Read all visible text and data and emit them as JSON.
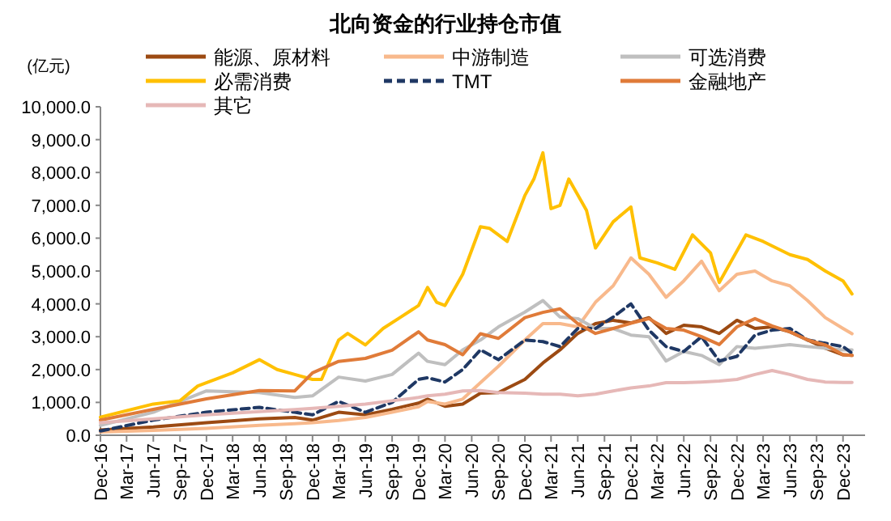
{
  "chart_data": {
    "type": "line",
    "title": "北向资金的行业持仓市值",
    "ylabel": "(亿元)",
    "legend": "top",
    "x": [
      "2016-12",
      "2017-06",
      "2017-12",
      "2018-06",
      "2018-10",
      "2018-12",
      "2019-03",
      "2019-06",
      "2019-09",
      "2019-12",
      "2020-01",
      "2020-03",
      "2020-05",
      "2020-07",
      "2020-09",
      "2020-12",
      "2021-02",
      "2021-04",
      "2021-06",
      "2021-08",
      "2021-10",
      "2021-12",
      "2022-02",
      "2022-04",
      "2022-06",
      "2022-08",
      "2022-10",
      "2022-12",
      "2023-02",
      "2023-04",
      "2023-06",
      "2023-08",
      "2023-10",
      "2023-12",
      "2024-01"
    ],
    "xlim": [
      "2016-12",
      "2024-02-15"
    ],
    "xticks": [
      {
        "value": "2016-12",
        "label": "Dec-16"
      },
      {
        "value": "2017-03",
        "label": "Mar-17"
      },
      {
        "value": "2017-06",
        "label": "Jun-17"
      },
      {
        "value": "2017-09",
        "label": "Sep-17"
      },
      {
        "value": "2017-12",
        "label": "Dec-17"
      },
      {
        "value": "2018-03",
        "label": "Mar-18"
      },
      {
        "value": "2018-06",
        "label": "Jun-18"
      },
      {
        "value": "2018-09",
        "label": "Sep-18"
      },
      {
        "value": "2018-12",
        "label": "Dec-18"
      },
      {
        "value": "2019-03",
        "label": "Mar-19"
      },
      {
        "value": "2019-06",
        "label": "Jun-19"
      },
      {
        "value": "2019-09",
        "label": "Sep-19"
      },
      {
        "value": "2019-12",
        "label": "Dec-19"
      },
      {
        "value": "2020-03",
        "label": "Mar-20"
      },
      {
        "value": "2020-06",
        "label": "Jun-20"
      },
      {
        "value": "2020-09",
        "label": "Sep-20"
      },
      {
        "value": "2020-12",
        "label": "Dec-20"
      },
      {
        "value": "2021-03",
        "label": "Mar-21"
      },
      {
        "value": "2021-06",
        "label": "Jun-21"
      },
      {
        "value": "2021-09",
        "label": "Sep-21"
      },
      {
        "value": "2021-12",
        "label": "Dec-21"
      },
      {
        "value": "2022-03",
        "label": "Mar-22"
      },
      {
        "value": "2022-06",
        "label": "Jun-22"
      },
      {
        "value": "2022-09",
        "label": "Sep-22"
      },
      {
        "value": "2022-12",
        "label": "Dec-22"
      },
      {
        "value": "2023-03",
        "label": "Mar-23"
      },
      {
        "value": "2023-06",
        "label": "Jun-23"
      },
      {
        "value": "2023-09",
        "label": "Sep-23"
      },
      {
        "value": "2023-12",
        "label": "Dec-23"
      }
    ],
    "ylim": [
      0,
      10000
    ],
    "yticks": [
      {
        "value": 0,
        "label": "0.0"
      },
      {
        "value": 1000,
        "label": "1,000.0"
      },
      {
        "value": 2000,
        "label": "2,000.0"
      },
      {
        "value": 3000,
        "label": "3,000.0"
      },
      {
        "value": 4000,
        "label": "4,000.0"
      },
      {
        "value": 5000,
        "label": "5,000.0"
      },
      {
        "value": 6000,
        "label": "6,000.0"
      },
      {
        "value": 7000,
        "label": "7,000.0"
      },
      {
        "value": 8000,
        "label": "8,000.0"
      },
      {
        "value": 9000,
        "label": "9,000.0"
      },
      {
        "value": 10000,
        "label": "10,000.0"
      }
    ],
    "grid": false,
    "line_style": "solid",
    "marker": "none",
    "series": [
      {
        "name": "能源、原材料",
        "color": "#9c4a12",
        "values": [
          160,
          250,
          380,
          500,
          540,
          460,
          700,
          620,
          790,
          980,
          1100,
          880,
          950,
          1280,
          1300,
          1700,
          2200,
          2600,
          3100,
          3400,
          3500,
          3420,
          3580,
          3100,
          3350,
          3300,
          3100,
          3500,
          3250,
          3300,
          3150,
          2900,
          2650,
          2450,
          2430
        ]
      },
      {
        "name": "中游制造",
        "color": "#f8b98c",
        "values": [
          100,
          150,
          210,
          300,
          350,
          380,
          450,
          540,
          700,
          870,
          1030,
          950,
          1100,
          1600,
          2100,
          2900,
          3400,
          3400,
          3300,
          4050,
          4550,
          5400,
          4900,
          4200,
          4700,
          5300,
          4400,
          4900,
          5000,
          4700,
          4550,
          4100,
          3580,
          3250,
          3090
        ]
      },
      {
        "name": "可选消费",
        "color": "#bfbfbf",
        "values": [
          300,
          700,
          1350,
          1300,
          1150,
          1200,
          1770,
          1650,
          1850,
          2500,
          2250,
          2150,
          2600,
          2900,
          3300,
          3750,
          4100,
          3600,
          3550,
          3250,
          3250,
          3050,
          3000,
          2260,
          2550,
          2430,
          2150,
          2700,
          2650,
          2700,
          2760,
          2700,
          2650,
          2600,
          2600
        ]
      },
      {
        "name": "必需消费",
        "color": "#ffc000",
        "x": [
          "2016-12",
          "2017-06",
          "2017-09",
          "2017-11",
          "2018-01",
          "2018-03",
          "2018-06",
          "2018-08",
          "2018-10",
          "2018-12",
          "2019-01",
          "2019-03",
          "2019-04",
          "2019-06",
          "2019-08",
          "2019-10",
          "2019-12",
          "2020-01",
          "2020-02",
          "2020-03",
          "2020-05",
          "2020-07",
          "2020-08",
          "2020-10",
          "2020-12",
          "2021-01",
          "2021-02",
          "2021-03",
          "2021-04",
          "2021-05",
          "2021-07",
          "2021-08",
          "2021-10",
          "2021-12",
          "2022-01",
          "2022-03",
          "2022-05",
          "2022-07",
          "2022-09",
          "2022-10",
          "2023-01",
          "2023-03",
          "2023-06",
          "2023-08",
          "2023-10",
          "2023-12",
          "2024-01"
        ],
        "values": [
          550,
          950,
          1050,
          1500,
          1700,
          1900,
          2300,
          2000,
          1850,
          1700,
          1700,
          2900,
          3100,
          2750,
          3250,
          3600,
          3950,
          4500,
          4050,
          3950,
          4900,
          6350,
          6300,
          5900,
          7300,
          7800,
          8600,
          6900,
          7000,
          7800,
          6850,
          5700,
          6500,
          6950,
          5400,
          5250,
          5050,
          6100,
          5550,
          4650,
          6100,
          5900,
          5500,
          5350,
          5000,
          4700,
          4300
        ]
      },
      {
        "name": "TMT",
        "color": "#1f3864",
        "line_style": "dashed",
        "values": [
          130,
          460,
          700,
          850,
          700,
          620,
          1030,
          700,
          1000,
          1700,
          1750,
          1620,
          2000,
          2600,
          2300,
          2900,
          2850,
          2700,
          3250,
          3250,
          3600,
          4000,
          3200,
          2700,
          2550,
          3000,
          2260,
          2400,
          3050,
          3200,
          3250,
          2900,
          2800,
          2700,
          2500
        ]
      },
      {
        "name": "金融地产",
        "color": "#e07b39",
        "values": [
          460,
          790,
          1110,
          1360,
          1350,
          1900,
          2250,
          2340,
          2590,
          3150,
          2900,
          2760,
          2450,
          3090,
          2950,
          3580,
          3740,
          3850,
          3400,
          3100,
          3250,
          3410,
          3550,
          3250,
          3200,
          3000,
          2760,
          3300,
          3550,
          3330,
          3150,
          2900,
          2750,
          2450,
          2430
        ]
      },
      {
        "name": "其它",
        "color": "#e6b8b7",
        "values": [
          380,
          500,
          620,
          720,
          780,
          820,
          880,
          950,
          1050,
          1150,
          1200,
          1250,
          1350,
          1360,
          1300,
          1280,
          1250,
          1250,
          1200,
          1250,
          1350,
          1440,
          1500,
          1600,
          1600,
          1620,
          1650,
          1700,
          1850,
          1970,
          1850,
          1700,
          1620,
          1610,
          1610
        ]
      }
    ]
  }
}
